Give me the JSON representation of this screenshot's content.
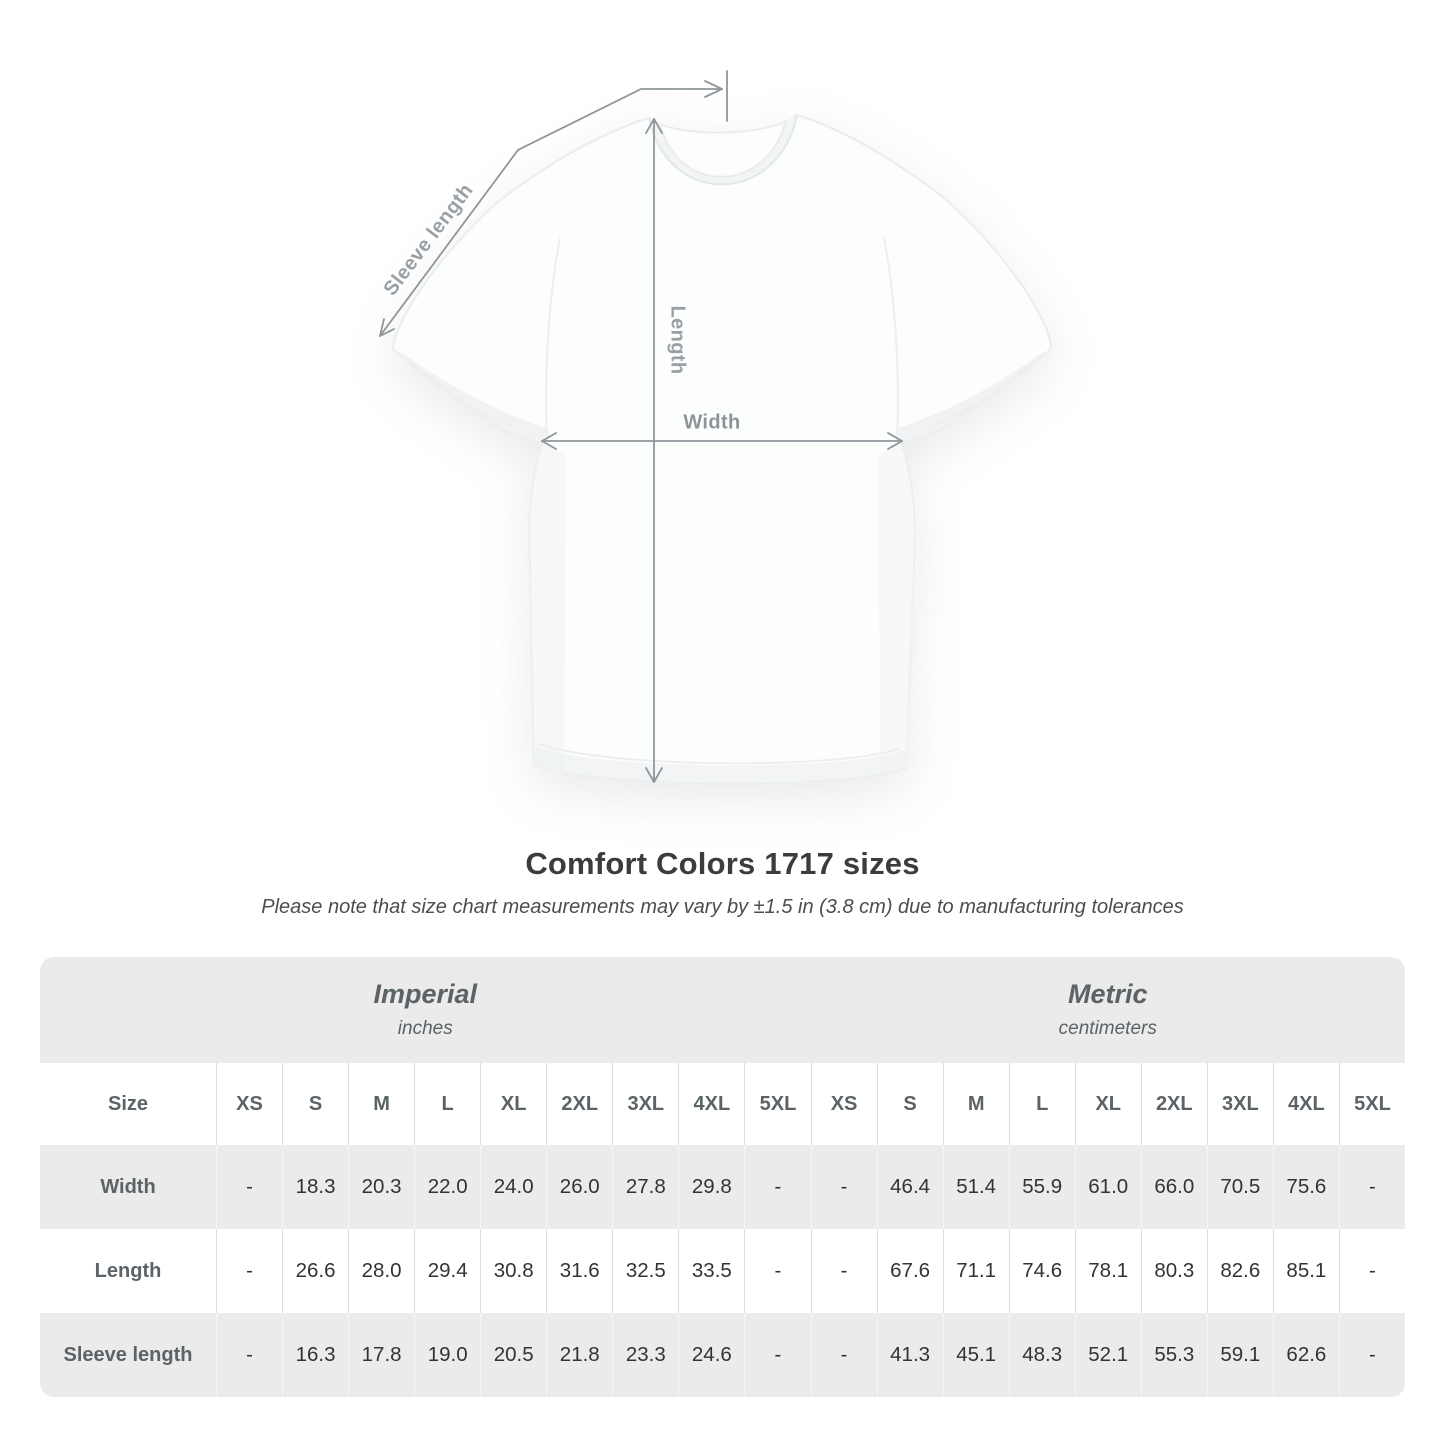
{
  "diagram": {
    "sleeve_length_label": "Sleeve length",
    "length_label": "Length",
    "width_label": "Width"
  },
  "heading": {
    "title": "Comfort Colors 1717 sizes",
    "subtitle": "Please note that size chart measurements may vary by ±1.5 in (3.8 cm) due to manufacturing tolerances"
  },
  "table": {
    "size_column_header": "Size",
    "unit_groups": [
      {
        "label": "Imperial",
        "sublabel": "inches"
      },
      {
        "label": "Metric",
        "sublabel": "centimeters"
      }
    ],
    "sizes": [
      "XS",
      "S",
      "M",
      "L",
      "XL",
      "2XL",
      "3XL",
      "4XL",
      "5XL"
    ],
    "rows": [
      {
        "label": "Width",
        "imperial": [
          "-",
          "18.3",
          "20.3",
          "22.0",
          "24.0",
          "26.0",
          "27.8",
          "29.8",
          "-"
        ],
        "metric": [
          "-",
          "46.4",
          "51.4",
          "55.9",
          "61.0",
          "66.0",
          "70.5",
          "75.6",
          "-"
        ]
      },
      {
        "label": "Length",
        "imperial": [
          "-",
          "26.6",
          "28.0",
          "29.4",
          "30.8",
          "31.6",
          "32.5",
          "33.5",
          "-"
        ],
        "metric": [
          "-",
          "67.6",
          "71.1",
          "74.6",
          "78.1",
          "80.3",
          "82.6",
          "85.1",
          "-"
        ]
      },
      {
        "label": "Sleeve length",
        "imperial": [
          "-",
          "16.3",
          "17.8",
          "19.0",
          "20.5",
          "21.8",
          "23.3",
          "24.6",
          "-"
        ],
        "metric": [
          "-",
          "41.3",
          "45.1",
          "48.3",
          "52.1",
          "55.3",
          "59.1",
          "62.6",
          "-"
        ]
      }
    ]
  },
  "chart_data": {
    "type": "table",
    "title": "Comfort Colors 1717 sizes",
    "note": "Please note that size chart measurements may vary by ±1.5 in (3.8 cm) due to manufacturing tolerances",
    "columns": [
      "XS",
      "S",
      "M",
      "L",
      "XL",
      "2XL",
      "3XL",
      "4XL",
      "5XL"
    ],
    "series": [
      {
        "name": "Width (in)",
        "values": [
          null,
          18.3,
          20.3,
          22.0,
          24.0,
          26.0,
          27.8,
          29.8,
          null
        ]
      },
      {
        "name": "Length (in)",
        "values": [
          null,
          26.6,
          28.0,
          29.4,
          30.8,
          31.6,
          32.5,
          33.5,
          null
        ]
      },
      {
        "name": "Sleeve length (in)",
        "values": [
          null,
          16.3,
          17.8,
          19.0,
          20.5,
          21.8,
          23.3,
          24.6,
          null
        ]
      },
      {
        "name": "Width (cm)",
        "values": [
          null,
          46.4,
          51.4,
          55.9,
          61.0,
          66.0,
          70.5,
          75.6,
          null
        ]
      },
      {
        "name": "Length (cm)",
        "values": [
          null,
          67.6,
          71.1,
          74.6,
          78.1,
          80.3,
          82.6,
          85.1,
          null
        ]
      },
      {
        "name": "Sleeve length (cm)",
        "values": [
          null,
          41.3,
          45.1,
          48.3,
          52.1,
          55.3,
          59.1,
          62.6,
          null
        ]
      }
    ]
  },
  "colors": {
    "stripe": "#ebebeb",
    "header_text": "#5c6367",
    "value_text": "#323334",
    "annotation": "#99a0a5"
  }
}
